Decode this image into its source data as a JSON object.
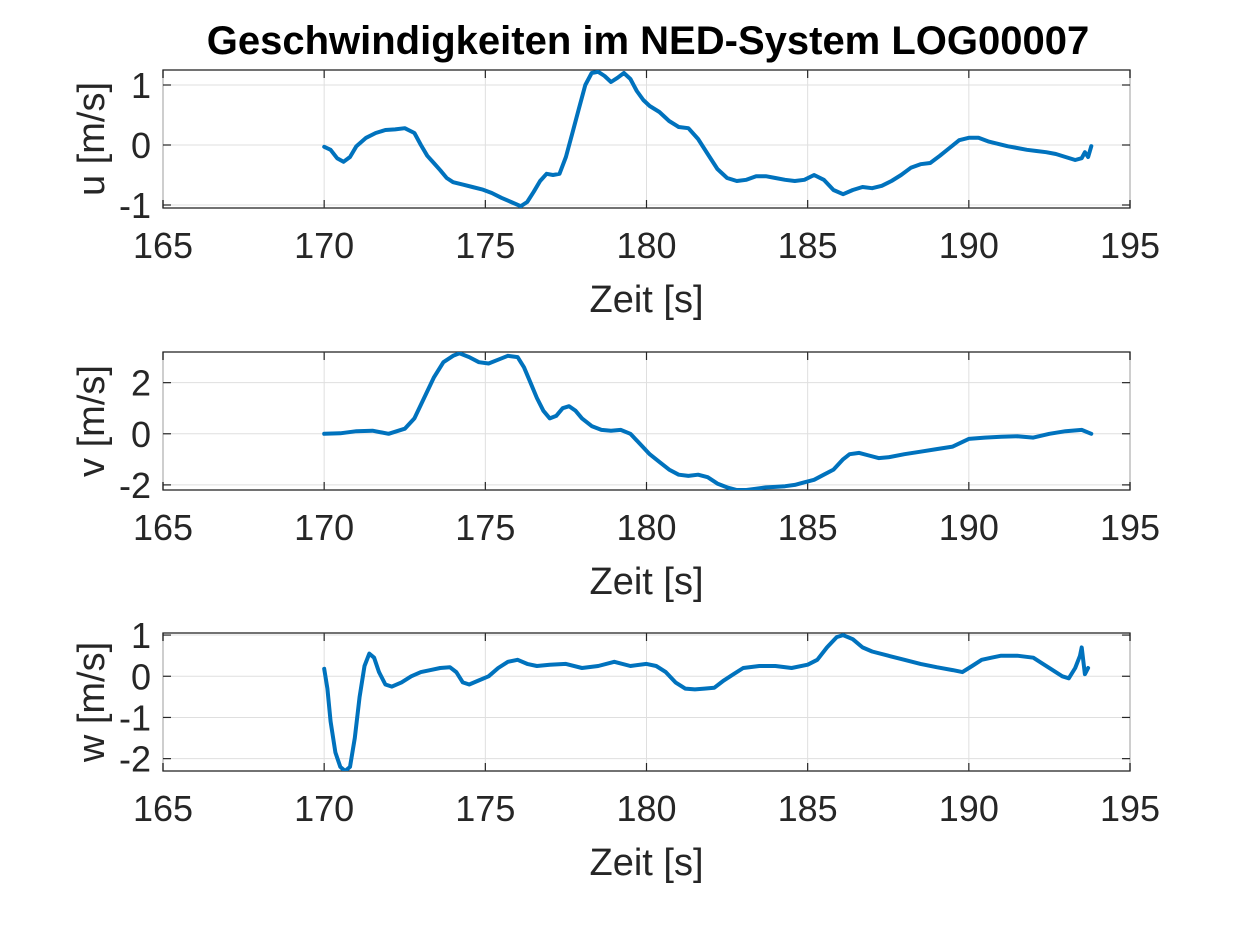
{
  "figure": {
    "title": "Geschwindigkeiten im NED-System LOG00007"
  },
  "colors": {
    "series": "#0072BD",
    "background": "#ffffff"
  },
  "chart_data": [
    {
      "type": "line",
      "xlabel": "Zeit [s]",
      "ylabel": "u [m/s]",
      "xlim": [
        165,
        195
      ],
      "ylim": [
        -1.05,
        1.25
      ],
      "xticks": [
        "165",
        "170",
        "175",
        "180",
        "185",
        "190",
        "195"
      ],
      "xtick_values": [
        165,
        170,
        175,
        180,
        185,
        190,
        195
      ],
      "yticks": [
        "-1",
        "0",
        "1"
      ],
      "ytick_values": [
        -1,
        0,
        1
      ],
      "grid": true,
      "series": [
        {
          "x": [
            170.0,
            170.2,
            170.4,
            170.6,
            170.8,
            171.0,
            171.3,
            171.6,
            171.9,
            172.2,
            172.5,
            172.8,
            173.0,
            173.2,
            173.4,
            173.6,
            173.8,
            174.0,
            174.3,
            174.6,
            174.9,
            175.2,
            175.5,
            175.8,
            176.1,
            176.3,
            176.5,
            176.7,
            176.9,
            177.1,
            177.3,
            177.5,
            177.7,
            177.9,
            178.1,
            178.3,
            178.5,
            178.7,
            178.9,
            179.1,
            179.3,
            179.5,
            179.7,
            179.9,
            180.1,
            180.4,
            180.7,
            181.0,
            181.3,
            181.6,
            181.9,
            182.2,
            182.5,
            182.8,
            183.1,
            183.4,
            183.7,
            184.0,
            184.3,
            184.6,
            184.9,
            185.2,
            185.5,
            185.8,
            186.1,
            186.4,
            186.7,
            187.0,
            187.3,
            187.6,
            187.9,
            188.2,
            188.5,
            188.8,
            189.1,
            189.4,
            189.7,
            190.0,
            190.3,
            190.6,
            190.9,
            191.2,
            191.5,
            191.8,
            192.1,
            192.4,
            192.7,
            193.0,
            193.3,
            193.5,
            193.6,
            193.7,
            193.8
          ],
          "y": [
            -0.03,
            -0.08,
            -0.22,
            -0.28,
            -0.2,
            -0.02,
            0.12,
            0.2,
            0.25,
            0.26,
            0.28,
            0.2,
            0.0,
            -0.18,
            -0.3,
            -0.42,
            -0.55,
            -0.62,
            -0.66,
            -0.7,
            -0.74,
            -0.8,
            -0.88,
            -0.95,
            -1.02,
            -0.95,
            -0.78,
            -0.6,
            -0.48,
            -0.5,
            -0.48,
            -0.2,
            0.2,
            0.6,
            1.0,
            1.2,
            1.22,
            1.15,
            1.05,
            1.12,
            1.2,
            1.1,
            0.9,
            0.75,
            0.65,
            0.55,
            0.4,
            0.3,
            0.28,
            0.1,
            -0.15,
            -0.4,
            -0.55,
            -0.6,
            -0.58,
            -0.52,
            -0.52,
            -0.55,
            -0.58,
            -0.6,
            -0.58,
            -0.5,
            -0.58,
            -0.75,
            -0.82,
            -0.75,
            -0.7,
            -0.72,
            -0.68,
            -0.6,
            -0.5,
            -0.38,
            -0.32,
            -0.3,
            -0.18,
            -0.05,
            0.08,
            0.12,
            0.12,
            0.06,
            0.02,
            -0.02,
            -0.05,
            -0.08,
            -0.1,
            -0.12,
            -0.15,
            -0.2,
            -0.25,
            -0.22,
            -0.12,
            -0.2,
            -0.02
          ]
        }
      ]
    },
    {
      "type": "line",
      "xlabel": "Zeit [s]",
      "ylabel": "v [m/s]",
      "xlim": [
        165,
        195
      ],
      "ylim": [
        -2.2,
        3.2
      ],
      "xticks": [
        "165",
        "170",
        "175",
        "180",
        "185",
        "190",
        "195"
      ],
      "xtick_values": [
        165,
        170,
        175,
        180,
        185,
        190,
        195
      ],
      "yticks": [
        "-2",
        "0",
        "2"
      ],
      "ytick_values": [
        -2,
        0,
        2
      ],
      "grid": true,
      "series": [
        {
          "x": [
            170.0,
            170.5,
            171.0,
            171.5,
            172.0,
            172.5,
            172.8,
            173.1,
            173.4,
            173.7,
            174.0,
            174.2,
            174.5,
            174.8,
            175.1,
            175.4,
            175.7,
            176.0,
            176.2,
            176.4,
            176.6,
            176.8,
            177.0,
            177.2,
            177.4,
            177.6,
            177.8,
            178.0,
            178.3,
            178.6,
            178.9,
            179.2,
            179.5,
            179.8,
            180.1,
            180.4,
            180.7,
            181.0,
            181.3,
            181.6,
            181.9,
            182.2,
            182.5,
            182.8,
            183.1,
            183.4,
            183.7,
            184.0,
            184.3,
            184.6,
            184.9,
            185.2,
            185.5,
            185.8,
            186.1,
            186.3,
            186.6,
            186.9,
            187.2,
            187.5,
            188.0,
            188.5,
            189.0,
            189.5,
            190.0,
            190.5,
            191.0,
            191.5,
            192.0,
            192.5,
            193.0,
            193.5,
            193.8
          ],
          "y": [
            0.0,
            0.02,
            0.1,
            0.12,
            0.0,
            0.2,
            0.6,
            1.4,
            2.2,
            2.8,
            3.05,
            3.15,
            3.0,
            2.8,
            2.75,
            2.9,
            3.05,
            3.0,
            2.6,
            2.0,
            1.4,
            0.9,
            0.6,
            0.7,
            1.0,
            1.08,
            0.9,
            0.6,
            0.3,
            0.15,
            0.12,
            0.15,
            0.0,
            -0.4,
            -0.8,
            -1.1,
            -1.4,
            -1.6,
            -1.65,
            -1.6,
            -1.7,
            -1.95,
            -2.1,
            -2.2,
            -2.2,
            -2.15,
            -2.1,
            -2.08,
            -2.05,
            -2.0,
            -1.9,
            -1.8,
            -1.6,
            -1.4,
            -1.0,
            -0.8,
            -0.75,
            -0.85,
            -0.95,
            -0.92,
            -0.8,
            -0.7,
            -0.6,
            -0.5,
            -0.2,
            -0.15,
            -0.12,
            -0.1,
            -0.15,
            0.0,
            0.1,
            0.15,
            0.0
          ]
        }
      ]
    },
    {
      "type": "line",
      "xlabel": "Zeit [s]",
      "ylabel": "w [m/s]",
      "xlim": [
        165,
        195
      ],
      "ylim": [
        -2.3,
        1.05
      ],
      "xticks": [
        "165",
        "170",
        "175",
        "180",
        "185",
        "190",
        "195"
      ],
      "xtick_values": [
        165,
        170,
        175,
        180,
        185,
        190,
        195
      ],
      "yticks": [
        "-2",
        "-1",
        "0",
        "1"
      ],
      "ytick_values": [
        -2,
        -1,
        0,
        1
      ],
      "grid": true,
      "series": [
        {
          "x": [
            170.0,
            170.1,
            170.2,
            170.35,
            170.5,
            170.65,
            170.8,
            170.95,
            171.1,
            171.25,
            171.4,
            171.55,
            171.7,
            171.9,
            172.1,
            172.4,
            172.7,
            173.0,
            173.3,
            173.6,
            173.9,
            174.1,
            174.3,
            174.5,
            174.8,
            175.1,
            175.4,
            175.7,
            176.0,
            176.3,
            176.6,
            177.0,
            177.5,
            178.0,
            178.5,
            179.0,
            179.5,
            180.0,
            180.3,
            180.6,
            180.9,
            181.2,
            181.5,
            181.8,
            182.1,
            182.4,
            182.7,
            183.0,
            183.5,
            184.0,
            184.5,
            185.0,
            185.3,
            185.6,
            185.9,
            186.1,
            186.4,
            186.7,
            187.0,
            187.5,
            188.0,
            188.5,
            189.0,
            189.5,
            189.8,
            190.1,
            190.4,
            190.7,
            191.0,
            191.5,
            192.0,
            192.3,
            192.6,
            192.9,
            193.1,
            193.3,
            193.45,
            193.5,
            193.6,
            193.7
          ],
          "y": [
            0.18,
            -0.3,
            -1.1,
            -1.85,
            -2.2,
            -2.3,
            -2.2,
            -1.5,
            -0.5,
            0.25,
            0.55,
            0.45,
            0.1,
            -0.2,
            -0.25,
            -0.15,
            0.0,
            0.1,
            0.15,
            0.2,
            0.22,
            0.1,
            -0.15,
            -0.2,
            -0.1,
            0.0,
            0.2,
            0.35,
            0.4,
            0.3,
            0.25,
            0.28,
            0.3,
            0.2,
            0.25,
            0.35,
            0.25,
            0.3,
            0.25,
            0.1,
            -0.15,
            -0.3,
            -0.32,
            -0.3,
            -0.28,
            -0.1,
            0.05,
            0.2,
            0.25,
            0.25,
            0.2,
            0.28,
            0.4,
            0.7,
            0.95,
            1.0,
            0.9,
            0.7,
            0.6,
            0.5,
            0.4,
            0.3,
            0.22,
            0.15,
            0.1,
            0.25,
            0.4,
            0.45,
            0.5,
            0.5,
            0.45,
            0.3,
            0.15,
            0.0,
            -0.05,
            0.2,
            0.5,
            0.7,
            0.05,
            0.2
          ]
        }
      ]
    }
  ]
}
